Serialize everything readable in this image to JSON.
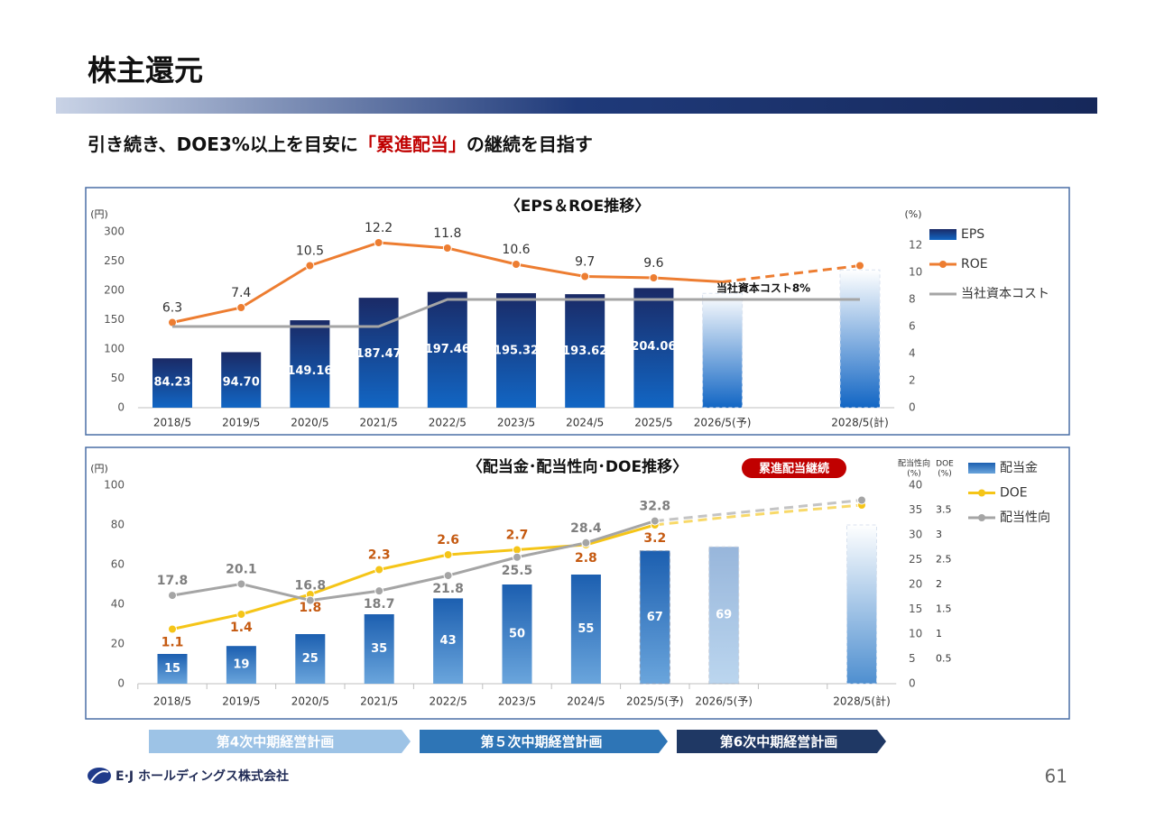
{
  "slide": {
    "title": "株主還元",
    "subtitle": [
      "引き続き、DOE3%以上を目安に",
      "「累進配当」",
      "の継続を目指す"
    ],
    "phases": [
      "第4次中期経営計画",
      "第５次中期経営計画",
      "第6次中期経営計画"
    ],
    "company": "E·J ホールディングス株式会社",
    "page": 61
  },
  "chart_data": [
    {
      "type": "bar-line",
      "title": "〈EPS＆ROE推移〉",
      "ylabel": "(円)",
      "y2label": "(%)",
      "categories": [
        "2018/5",
        "2019/5",
        "2020/5",
        "2021/5",
        "2022/5",
        "2023/5",
        "2024/5",
        "2025/5",
        "2026/5(予)",
        null,
        "2028/5(計)"
      ],
      "ylim": [
        0,
        300
      ],
      "yticks": [
        0,
        50,
        100,
        150,
        200,
        250,
        300
      ],
      "y2lim": [
        0,
        13
      ],
      "y2ticks": [
        0,
        2,
        4,
        6,
        8,
        10,
        12
      ],
      "grid": false,
      "forecast_from": 8,
      "annotation": "当社資本コスト8%",
      "series": [
        {
          "name": "EPS",
          "type": "bar",
          "color": "#1c3a84",
          "values": [
            84.23,
            94.7,
            149.16,
            187.47,
            197.46,
            195.32,
            193.62,
            204.06,
            195,
            null,
            235
          ],
          "value_labels": [
            "84.23",
            "94.70",
            "149.16",
            "187.47",
            "197.46",
            "195.32",
            "193.62",
            "204.06",
            null,
            null,
            null
          ]
        },
        {
          "name": "ROE",
          "type": "line",
          "axis": "y2",
          "color": "#ed7d31",
          "values": [
            6.3,
            7.4,
            10.5,
            12.2,
            11.8,
            10.6,
            9.7,
            9.6,
            9.3,
            9.9,
            10.5
          ],
          "value_labels": [
            "6.3",
            "7.4",
            "10.5",
            "12.2",
            "11.8",
            "10.6",
            "9.7",
            "9.6",
            null,
            null,
            null
          ]
        },
        {
          "name": "当社資本コスト",
          "type": "line",
          "axis": "y2",
          "color": "#a5a5a5",
          "markers": false,
          "values": [
            6,
            6,
            6,
            6,
            8,
            8,
            8,
            8,
            8,
            8,
            8
          ]
        }
      ]
    },
    {
      "type": "bar-line",
      "title": "〈配当金･配当性向･DOE推移〉",
      "badge": "累進配当継続",
      "ylabel": "(円)",
      "y2label": [
        "配当性向",
        "(%)"
      ],
      "y3label": [
        "DOE",
        "(%)"
      ],
      "categories": [
        "2018/5",
        "2019/5",
        "2020/5",
        "2021/5",
        "2022/5",
        "2023/5",
        "2024/5",
        "2025/5(予)",
        "2026/5(予)",
        null,
        "2028/5(計)"
      ],
      "ylim": [
        0,
        100
      ],
      "yticks": [
        0,
        20,
        40,
        60,
        80,
        100
      ],
      "y2lim": [
        0,
        40
      ],
      "y2ticks": [
        0,
        5,
        10,
        15,
        20,
        25,
        30,
        35,
        40
      ],
      "y3lim": [
        0,
        4
      ],
      "y3ticks": [
        0.5,
        1.0,
        1.5,
        2.0,
        2.5,
        3.0,
        3.5
      ],
      "grid": false,
      "forecast_from": 7,
      "series": [
        {
          "name": "配当金",
          "type": "bar",
          "color": "#2e75b6",
          "values": [
            15,
            19,
            25,
            35,
            43,
            50,
            55,
            67,
            69,
            null,
            80
          ],
          "value_labels": [
            "15",
            "19",
            "25",
            "35",
            "43",
            "50",
            "55",
            "67",
            "69",
            null,
            null
          ]
        },
        {
          "name": "DOE",
          "type": "line",
          "axis": "y3",
          "color": "#f5c518",
          "label_color": "#c55a11",
          "values": [
            1.1,
            1.4,
            1.8,
            2.3,
            2.6,
            2.7,
            2.8,
            3.2,
            3.35,
            3.48,
            3.6
          ],
          "value_labels": [
            "1.1",
            "1.4",
            "1.8",
            "2.3",
            "2.6",
            "2.7",
            "2.8",
            "3.2",
            null,
            null,
            null
          ]
        },
        {
          "name": "配当性向",
          "type": "line",
          "axis": "y2",
          "color": "#a5a5a5",
          "label_color": "#7f7f7f",
          "values": [
            17.8,
            20.1,
            16.8,
            18.7,
            21.8,
            25.5,
            28.4,
            32.8,
            34.2,
            35.6,
            37
          ],
          "value_labels": [
            "17.8",
            "20.1",
            "16.8",
            "18.7",
            "21.8",
            "25.5",
            "28.4",
            "32.8",
            null,
            null,
            null
          ]
        }
      ]
    }
  ]
}
